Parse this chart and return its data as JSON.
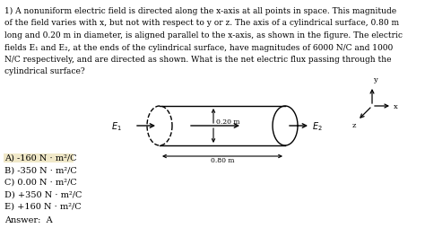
{
  "title_lines": [
    "1) A nonuniform electric field is directed along the x-axis at all points in space. This magnitude",
    "of the field varies with x, but not with respect to y or z. The axis of a cylindrical surface, 0.80 m",
    "long and 0.20 m in diameter, is aligned parallel to the x-axis, as shown in the figure. The electric",
    "fields E₁ and E₂, at the ends of the cylindrical surface, have magnitudes of 6000 N/C and 1000",
    "N/C respectively, and are directed as shown. What is the net electric flux passing through the",
    "cylindrical surface?"
  ],
  "choices": [
    "A) -160 N · m²/C",
    "B) -350 N · m²/C",
    "C) 0.00 N · m²/C",
    "D) +350 N · m²/C",
    "E) +160 N · m²/C"
  ],
  "answer": "Answer:  A",
  "highlighted_choice": 0,
  "highlight_color": "#f0e8c8",
  "background_color": "#ffffff",
  "text_color": "#000000",
  "fontsize_body": 6.5,
  "fontsize_choices": 7.0,
  "fontsize_small": 5.5
}
